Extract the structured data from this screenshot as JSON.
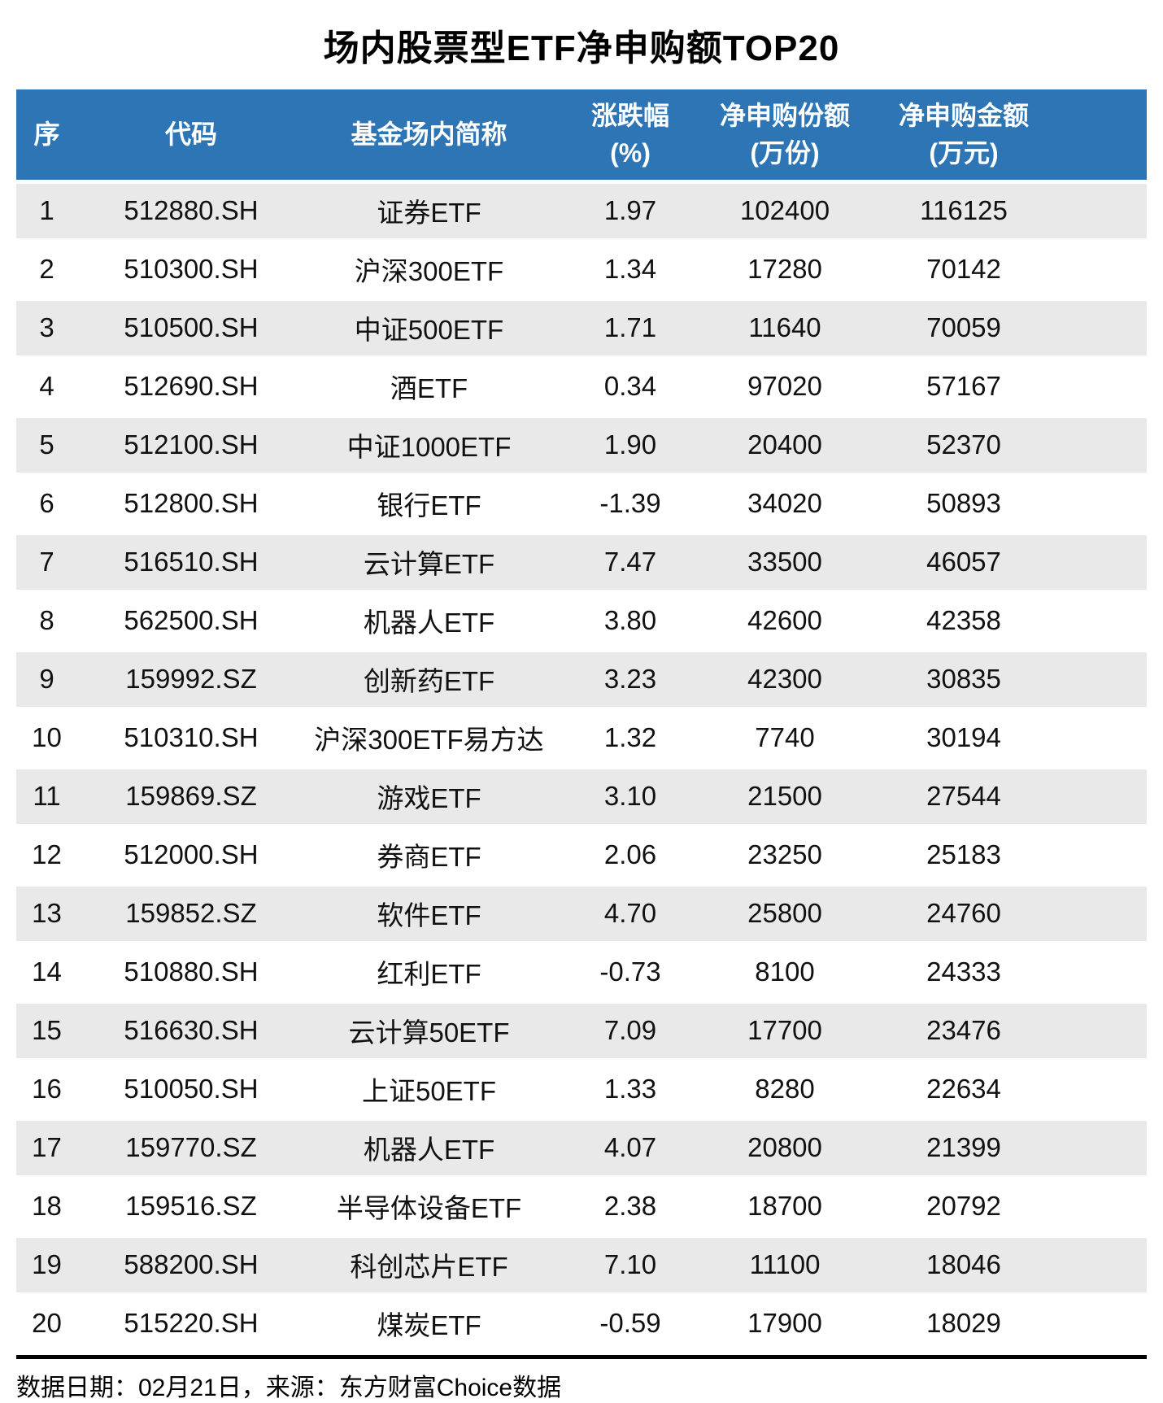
{
  "title": "场内股票型ETF净申购额TOP20",
  "colors": {
    "header_bg": "#2E75B6",
    "stripe_bg": "#E9E9E9",
    "header_text": "#FFFFFF",
    "body_text": "#111111",
    "divider": "#000000"
  },
  "table": {
    "headers": [
      {
        "label": "序",
        "unit": ""
      },
      {
        "label": "代码",
        "unit": ""
      },
      {
        "label": "基金场内简称",
        "unit": ""
      },
      {
        "label": "涨跌幅",
        "unit": "(%)"
      },
      {
        "label": "净申购份额",
        "unit": "(万份)"
      },
      {
        "label": "净申购金额",
        "unit": "(万元)"
      }
    ],
    "rows": [
      {
        "no": "1",
        "code": "512880.SH",
        "name": "证券ETF",
        "change_pct": "1.97",
        "net_shares": "102400",
        "net_amount": "116125"
      },
      {
        "no": "2",
        "code": "510300.SH",
        "name": "沪深300ETF",
        "change_pct": "1.34",
        "net_shares": "17280",
        "net_amount": "70142"
      },
      {
        "no": "3",
        "code": "510500.SH",
        "name": "中证500ETF",
        "change_pct": "1.71",
        "net_shares": "11640",
        "net_amount": "70059"
      },
      {
        "no": "4",
        "code": "512690.SH",
        "name": "酒ETF",
        "change_pct": "0.34",
        "net_shares": "97020",
        "net_amount": "57167"
      },
      {
        "no": "5",
        "code": "512100.SH",
        "name": "中证1000ETF",
        "change_pct": "1.90",
        "net_shares": "20400",
        "net_amount": "52370"
      },
      {
        "no": "6",
        "code": "512800.SH",
        "name": "银行ETF",
        "change_pct": "-1.39",
        "net_shares": "34020",
        "net_amount": "50893"
      },
      {
        "no": "7",
        "code": "516510.SH",
        "name": "云计算ETF",
        "change_pct": "7.47",
        "net_shares": "33500",
        "net_amount": "46057"
      },
      {
        "no": "8",
        "code": "562500.SH",
        "name": "机器人ETF",
        "change_pct": "3.80",
        "net_shares": "42600",
        "net_amount": "42358"
      },
      {
        "no": "9",
        "code": "159992.SZ",
        "name": "创新药ETF",
        "change_pct": "3.23",
        "net_shares": "42300",
        "net_amount": "30835"
      },
      {
        "no": "10",
        "code": "510310.SH",
        "name": "沪深300ETF易方达",
        "change_pct": "1.32",
        "net_shares": "7740",
        "net_amount": "30194"
      },
      {
        "no": "11",
        "code": "159869.SZ",
        "name": "游戏ETF",
        "change_pct": "3.10",
        "net_shares": "21500",
        "net_amount": "27544"
      },
      {
        "no": "12",
        "code": "512000.SH",
        "name": "券商ETF",
        "change_pct": "2.06",
        "net_shares": "23250",
        "net_amount": "25183"
      },
      {
        "no": "13",
        "code": "159852.SZ",
        "name": "软件ETF",
        "change_pct": "4.70",
        "net_shares": "25800",
        "net_amount": "24760"
      },
      {
        "no": "14",
        "code": "510880.SH",
        "name": "红利ETF",
        "change_pct": "-0.73",
        "net_shares": "8100",
        "net_amount": "24333"
      },
      {
        "no": "15",
        "code": "516630.SH",
        "name": "云计算50ETF",
        "change_pct": "7.09",
        "net_shares": "17700",
        "net_amount": "23476"
      },
      {
        "no": "16",
        "code": "510050.SH",
        "name": "上证50ETF",
        "change_pct": "1.33",
        "net_shares": "8280",
        "net_amount": "22634"
      },
      {
        "no": "17",
        "code": "159770.SZ",
        "name": "机器人ETF",
        "change_pct": "4.07",
        "net_shares": "20800",
        "net_amount": "21399"
      },
      {
        "no": "18",
        "code": "159516.SZ",
        "name": "半导体设备ETF",
        "change_pct": "2.38",
        "net_shares": "18700",
        "net_amount": "20792"
      },
      {
        "no": "19",
        "code": "588200.SH",
        "name": "科创芯片ETF",
        "change_pct": "7.10",
        "net_shares": "11100",
        "net_amount": "18046"
      },
      {
        "no": "20",
        "code": "515220.SH",
        "name": "煤炭ETF",
        "change_pct": "-0.59",
        "net_shares": "17900",
        "net_amount": "18029"
      }
    ]
  },
  "footer": {
    "note": "数据日期：02月21日，来源：东方财富Choice数据"
  },
  "chart_data": {
    "type": "table",
    "title": "场内股票型ETF净申购额TOP20",
    "columns": [
      "序",
      "代码",
      "基金场内简称",
      "涨跌幅(%)",
      "净申购份额(万份)",
      "净申购金额(万元)"
    ],
    "rows": [
      [
        1,
        "512880.SH",
        "证券ETF",
        1.97,
        102400,
        116125
      ],
      [
        2,
        "510300.SH",
        "沪深300ETF",
        1.34,
        17280,
        70142
      ],
      [
        3,
        "510500.SH",
        "中证500ETF",
        1.71,
        11640,
        70059
      ],
      [
        4,
        "512690.SH",
        "酒ETF",
        0.34,
        97020,
        57167
      ],
      [
        5,
        "512100.SH",
        "中证1000ETF",
        1.9,
        20400,
        52370
      ],
      [
        6,
        "512800.SH",
        "银行ETF",
        -1.39,
        34020,
        50893
      ],
      [
        7,
        "516510.SH",
        "云计算ETF",
        7.47,
        33500,
        46057
      ],
      [
        8,
        "562500.SH",
        "机器人ETF",
        3.8,
        42600,
        42358
      ],
      [
        9,
        "159992.SZ",
        "创新药ETF",
        3.23,
        42300,
        30835
      ],
      [
        10,
        "510310.SH",
        "沪深300ETF易方达",
        1.32,
        7740,
        30194
      ],
      [
        11,
        "159869.SZ",
        "游戏ETF",
        3.1,
        21500,
        27544
      ],
      [
        12,
        "512000.SH",
        "券商ETF",
        2.06,
        23250,
        25183
      ],
      [
        13,
        "159852.SZ",
        "软件ETF",
        4.7,
        25800,
        24760
      ],
      [
        14,
        "510880.SH",
        "红利ETF",
        -0.73,
        8100,
        24333
      ],
      [
        15,
        "516630.SH",
        "云计算50ETF",
        7.09,
        17700,
        23476
      ],
      [
        16,
        "510050.SH",
        "上证50ETF",
        1.33,
        8280,
        22634
      ],
      [
        17,
        "159770.SZ",
        "机器人ETF",
        4.07,
        20800,
        21399
      ],
      [
        18,
        "159516.SZ",
        "半导体设备ETF",
        2.38,
        18700,
        20792
      ],
      [
        19,
        "588200.SH",
        "科创芯片ETF",
        7.1,
        11100,
        18046
      ],
      [
        20,
        "515220.SH",
        "煤炭ETF",
        -0.59,
        17900,
        18029
      ]
    ],
    "source_note": "数据日期：02月21日，来源：东方财富Choice数据"
  }
}
